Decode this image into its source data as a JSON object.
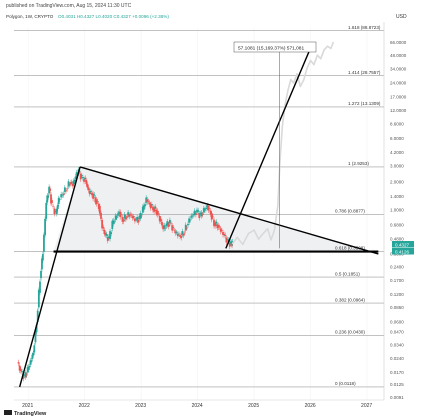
{
  "header": {
    "published": "published on TradingView.com, Aug 15, 2024 11:30 UTC",
    "symbol": "Polygon, 1W, CRYPTO",
    "ohlc": "O0.4031  H0.4327  L0.4020  C0.4327  +0.0096 (+2.38%)"
  },
  "axis": {
    "currency": "USD",
    "y_ticks": [
      "66.0000",
      "48.0000",
      "34.0000",
      "24.0000",
      "17.0000",
      "12.0000",
      "8.6000",
      "6.0000",
      "4.2000",
      "3.0000",
      "2.0000",
      "1.4000",
      "1.0000",
      "0.6800",
      "0.4800",
      "0.3300",
      "0.2400",
      "0.1700",
      "0.1200",
      "0.0860",
      "0.0600",
      "0.0470",
      "0.0340",
      "0.0240",
      "0.0170",
      "0.0125",
      "0.0091"
    ],
    "x_ticks": [
      "2021",
      "2022",
      "2023",
      "2024",
      "2025",
      "2026",
      "2027"
    ]
  },
  "footer": {
    "brand": "TradingView"
  },
  "colors": {
    "up": "#26a69a",
    "down": "#ef5350",
    "projection": "#d9d9d9",
    "triangle_fill": "#eef0f2",
    "line": "#000000",
    "fib": "#9e9e9e"
  },
  "chart_data": {
    "type": "candlestick",
    "scale": "log",
    "ylim": [
      0.0085,
      95
    ],
    "xlim": [
      2020.75,
      2027.3
    ],
    "fib_levels": [
      {
        "label": "1.618 (88.8723)",
        "value": 88.8723
      },
      {
        "label": "1.414 (28.7557)",
        "value": 28.7557
      },
      {
        "label": "1.272 (13.1309)",
        "value": 13.1309
      },
      {
        "label": "1 (2.9253)",
        "value": 2.9253
      },
      {
        "label": "0.786 (0.8877)",
        "value": 0.8877
      },
      {
        "label": "0.618 (0.3508)",
        "value": 0.3508
      },
      {
        "label": "0.5 (0.1851)",
        "value": 0.1851
      },
      {
        "label": "0.382 (0.0964)",
        "value": 0.0964
      },
      {
        "label": "0.236 (0.0430)",
        "value": 0.043
      },
      {
        "label": "0 (0.0118)",
        "value": 0.0118
      }
    ],
    "measure_label": "57.1081 (15,169.37%) 571,081",
    "last_price_labels": [
      "0.4327",
      "0.4126"
    ],
    "price_path": [
      [
        2020.82,
        0.022
      ],
      [
        2020.88,
        0.017
      ],
      [
        2020.95,
        0.015
      ],
      [
        2021.0,
        0.018
      ],
      [
        2021.05,
        0.022
      ],
      [
        2021.1,
        0.028
      ],
      [
        2021.16,
        0.06
      ],
      [
        2021.22,
        0.18
      ],
      [
        2021.27,
        0.35
      ],
      [
        2021.33,
        1.2
      ],
      [
        2021.38,
        1.7
      ],
      [
        2021.43,
        1.1
      ],
      [
        2021.5,
        0.9
      ],
      [
        2021.55,
        1.3
      ],
      [
        2021.62,
        1.5
      ],
      [
        2021.68,
        1.7
      ],
      [
        2021.75,
        2.0
      ],
      [
        2021.8,
        1.9
      ],
      [
        2021.85,
        2.3
      ],
      [
        2021.9,
        2.6
      ],
      [
        2021.96,
        2.2
      ],
      [
        2022.02,
        2.1
      ],
      [
        2022.08,
        1.6
      ],
      [
        2022.14,
        1.5
      ],
      [
        2022.2,
        1.3
      ],
      [
        2022.26,
        1.1
      ],
      [
        2022.32,
        0.65
      ],
      [
        2022.38,
        0.52
      ],
      [
        2022.44,
        0.48
      ],
      [
        2022.5,
        0.7
      ],
      [
        2022.56,
        0.82
      ],
      [
        2022.62,
        0.95
      ],
      [
        2022.68,
        0.78
      ],
      [
        2022.74,
        0.85
      ],
      [
        2022.8,
        0.9
      ],
      [
        2022.86,
        0.83
      ],
      [
        2022.92,
        0.76
      ],
      [
        2022.98,
        0.8
      ],
      [
        2023.04,
        1.0
      ],
      [
        2023.1,
        1.3
      ],
      [
        2023.16,
        1.15
      ],
      [
        2023.22,
        1.05
      ],
      [
        2023.28,
        0.98
      ],
      [
        2023.34,
        0.8
      ],
      [
        2023.4,
        0.62
      ],
      [
        2023.46,
        0.68
      ],
      [
        2023.52,
        0.72
      ],
      [
        2023.58,
        0.6
      ],
      [
        2023.64,
        0.55
      ],
      [
        2023.7,
        0.52
      ],
      [
        2023.76,
        0.56
      ],
      [
        2023.82,
        0.68
      ],
      [
        2023.88,
        0.82
      ],
      [
        2023.94,
        0.9
      ],
      [
        2024.0,
        0.95
      ],
      [
        2024.06,
        0.85
      ],
      [
        2024.12,
        0.98
      ],
      [
        2024.18,
        1.1
      ],
      [
        2024.24,
        0.92
      ],
      [
        2024.3,
        0.72
      ],
      [
        2024.36,
        0.68
      ],
      [
        2024.42,
        0.6
      ],
      [
        2024.48,
        0.52
      ],
      [
        2024.54,
        0.45
      ],
      [
        2024.6,
        0.42
      ],
      [
        2024.62,
        0.43
      ]
    ],
    "projection_path": [
      [
        2024.62,
        0.43
      ],
      [
        2024.7,
        0.5
      ],
      [
        2024.8,
        0.42
      ],
      [
        2024.9,
        0.55
      ],
      [
        2025.0,
        0.6
      ],
      [
        2025.08,
        0.48
      ],
      [
        2025.16,
        0.55
      ],
      [
        2025.24,
        0.62
      ],
      [
        2025.3,
        0.47
      ],
      [
        2025.36,
        0.6
      ],
      [
        2025.42,
        1.1
      ],
      [
        2025.46,
        3.5
      ],
      [
        2025.5,
        8
      ],
      [
        2025.55,
        14
      ],
      [
        2025.6,
        20
      ],
      [
        2025.65,
        26
      ],
      [
        2025.7,
        24
      ],
      [
        2025.76,
        30
      ],
      [
        2025.82,
        22
      ],
      [
        2025.88,
        26
      ],
      [
        2025.94,
        35
      ],
      [
        2026.0,
        42
      ],
      [
        2026.06,
        38
      ],
      [
        2026.12,
        48
      ],
      [
        2026.18,
        44
      ],
      [
        2026.24,
        55
      ],
      [
        2026.3,
        60
      ],
      [
        2026.36,
        57
      ],
      [
        2026.4,
        66
      ]
    ],
    "trendlines": [
      {
        "name": "uptrend",
        "from": [
          2020.85,
          0.0118
        ],
        "to": [
          2021.92,
          2.9253
        ]
      },
      {
        "name": "descending-resistance",
        "from": [
          2021.92,
          2.9253
        ],
        "to": [
          2027.2,
          0.33
        ]
      },
      {
        "name": "support",
        "from": [
          2021.45,
          0.3508
        ],
        "to": [
          2027.2,
          0.3508
        ]
      },
      {
        "name": "breakout",
        "from": [
          2024.5,
          0.38
        ],
        "to": [
          2025.98,
          54
        ]
      }
    ]
  }
}
